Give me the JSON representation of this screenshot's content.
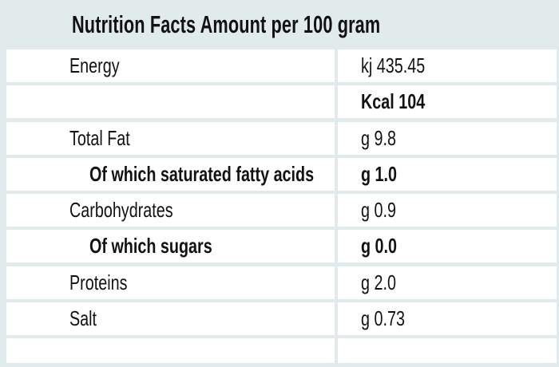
{
  "title": "Nutrition Facts Amount per 100 gram",
  "colors": {
    "background": "#e2ebec",
    "row_background": "#ffffff",
    "text": "#121212"
  },
  "table": {
    "rows": [
      {
        "label": "Energy",
        "value": "kj 435.45",
        "indent": false,
        "bold": false
      },
      {
        "label": "",
        "value": "Kcal 104",
        "indent": false,
        "bold": true
      },
      {
        "label": "Total Fat",
        "value": "g 9.8",
        "indent": false,
        "bold": false
      },
      {
        "label": "Of which saturated fatty acids",
        "value": "g 1.0",
        "indent": true,
        "bold": true
      },
      {
        "label": "Carbohydrates",
        "value": "g 0.9",
        "indent": false,
        "bold": false
      },
      {
        "label": "Of which sugars",
        "value": "g 0.0",
        "indent": true,
        "bold": true
      },
      {
        "label": "Proteins",
        "value": "g 2.0",
        "indent": false,
        "bold": false
      },
      {
        "label": "Salt",
        "value": "g 0.73",
        "indent": false,
        "bold": false
      },
      {
        "label": "",
        "value": "",
        "indent": false,
        "bold": false
      }
    ]
  }
}
